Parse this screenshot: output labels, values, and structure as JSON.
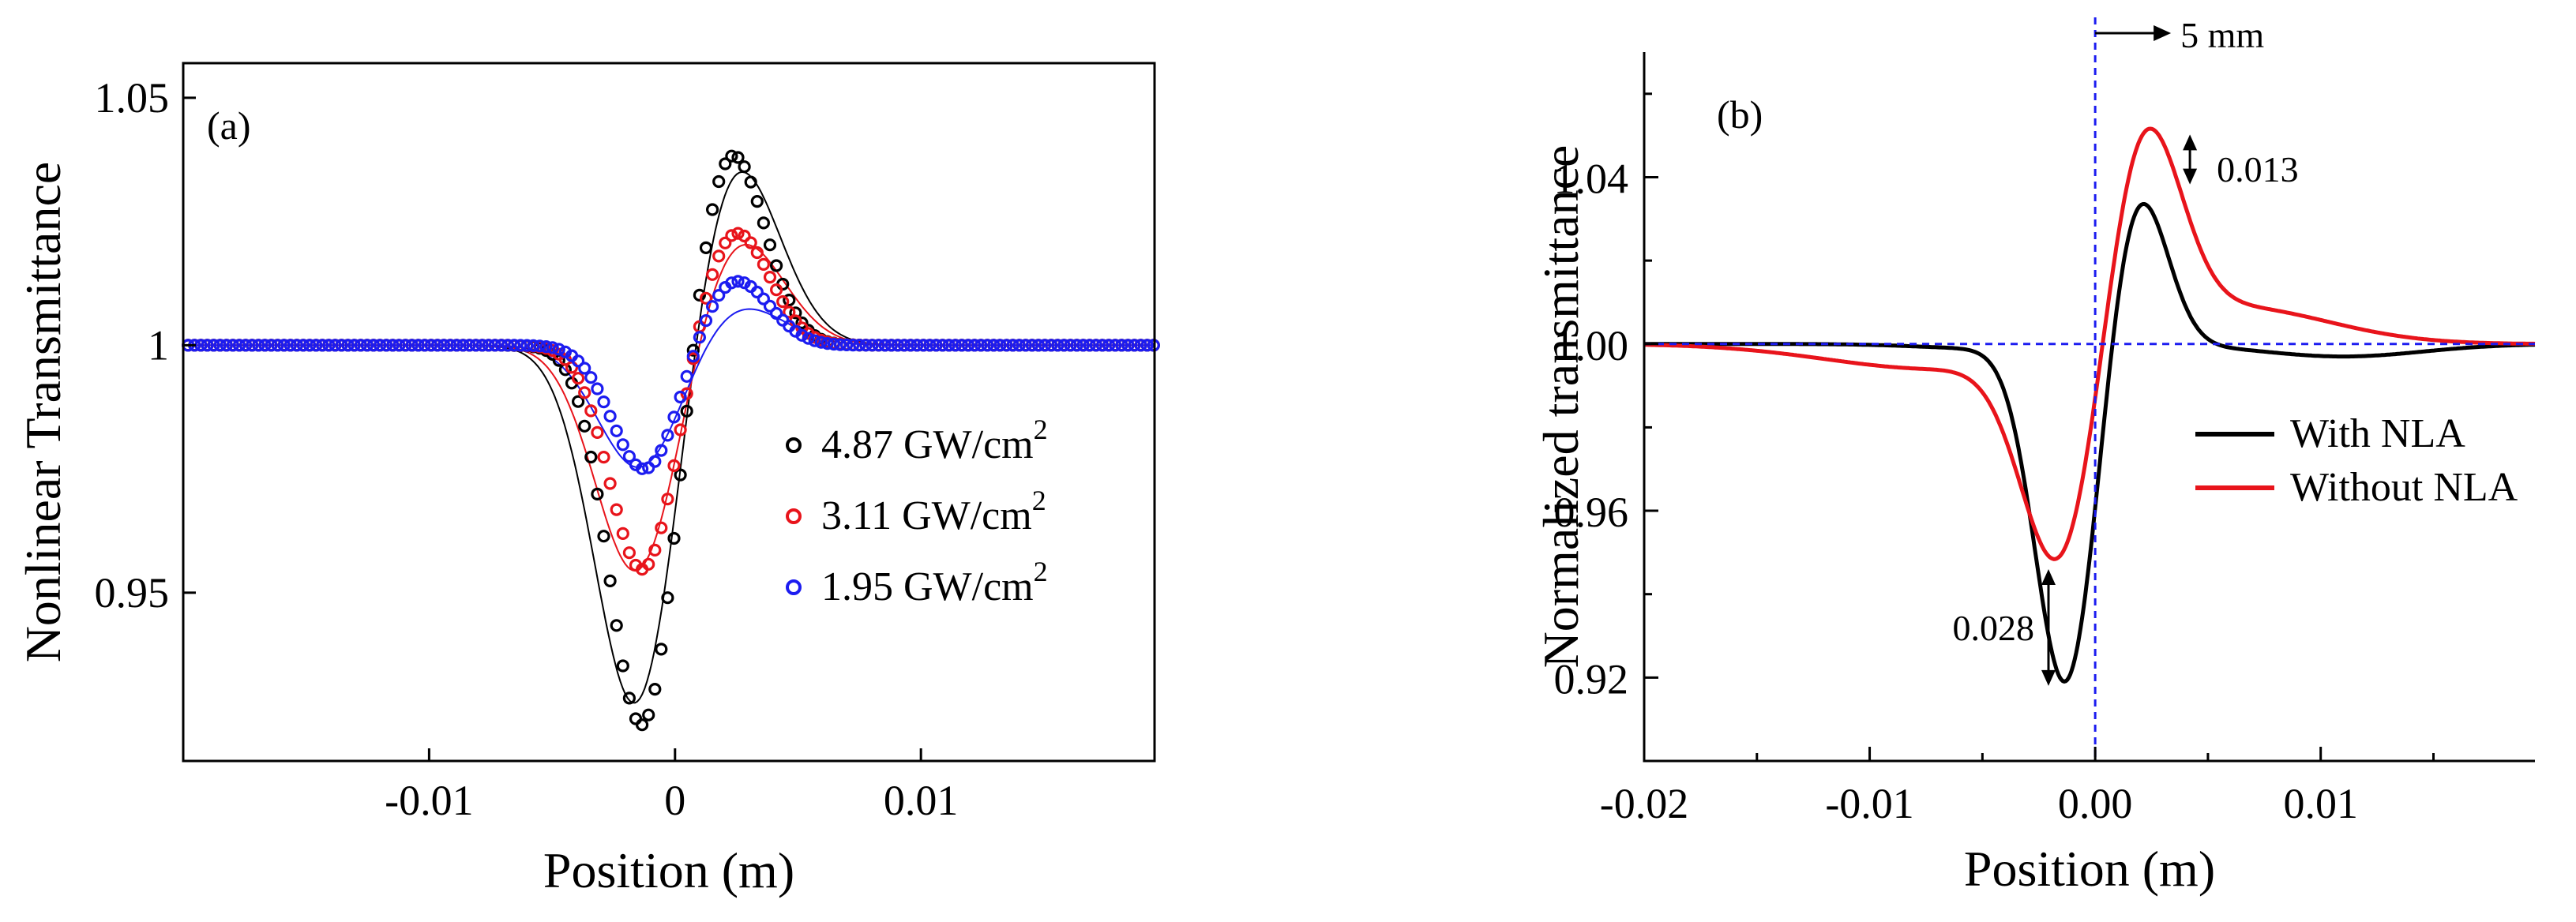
{
  "chart_data": [
    {
      "type": "scatter",
      "panel_label": "(a)",
      "xlabel": "Position (m)",
      "ylabel": "Nonlinear Transmittance",
      "xlim": [
        -0.02,
        0.0195
      ],
      "ylim": [
        0.916,
        1.057
      ],
      "xticks": [
        -0.01,
        0,
        0.01
      ],
      "xtick_labels": [
        "-0.01",
        "0",
        "0.01"
      ],
      "yticks": [
        0.95,
        1,
        1.05
      ],
      "ytick_labels": [
        "0.95",
        "1",
        "1.05"
      ],
      "legend_position": "center-right",
      "series": [
        {
          "name": "4.87 GW/cm",
          "superscript": "2",
          "color": "#000000",
          "valley": 0.9215,
          "peak": 1.0405,
          "valley_x": -0.0013,
          "peak_x": 0.0022,
          "fit_valley": 0.9235,
          "fit_peak": 1.0395
        },
        {
          "name": "3.11 GW/cm",
          "superscript": "2",
          "color": "#e8141b",
          "valley": 0.954,
          "peak": 1.0235,
          "valley_x": -0.0013,
          "peak_x": 0.0024,
          "fit_valley": 0.9525,
          "fit_peak": 1.0225
        },
        {
          "name": "1.95 GW/cm",
          "superscript": "2",
          "color": "#1c1cf0",
          "valley": 0.9745,
          "peak": 1.0135,
          "valley_x": -0.0012,
          "peak_x": 0.0024,
          "fit_valley": 0.9745,
          "fit_peak": 1.0085
        }
      ]
    },
    {
      "type": "line",
      "panel_label": "(b)",
      "xlabel": "Position (m)",
      "ylabel": "Normalized transmittance",
      "xlim": [
        -0.02,
        0.0195
      ],
      "ylim": [
        0.9,
        1.07
      ],
      "xticks": [
        -0.02,
        -0.01,
        0.0,
        0.01
      ],
      "xtick_labels": [
        "-0.02",
        "-0.01",
        "0.00",
        "0.01"
      ],
      "yticks": [
        0.92,
        0.96,
        1.0,
        1.04
      ],
      "ytick_labels": [
        "0.92",
        "0.96",
        "1.00",
        "1.04"
      ],
      "legend_position": "right",
      "series": [
        {
          "name": "With NLA",
          "color": "#000000",
          "valley": 0.918,
          "peak": 1.0375,
          "valley_x": -0.0013,
          "peak_x": 0.0019
        },
        {
          "name": "Without NLA",
          "color": "#e8141b",
          "valley": 0.9465,
          "peak": 1.051,
          "valley_x": -0.0015,
          "peak_x": 0.0021
        }
      ],
      "annotations": {
        "shift": "5 mm",
        "peak_diff": "0.013",
        "valley_diff": "0.028"
      }
    }
  ]
}
